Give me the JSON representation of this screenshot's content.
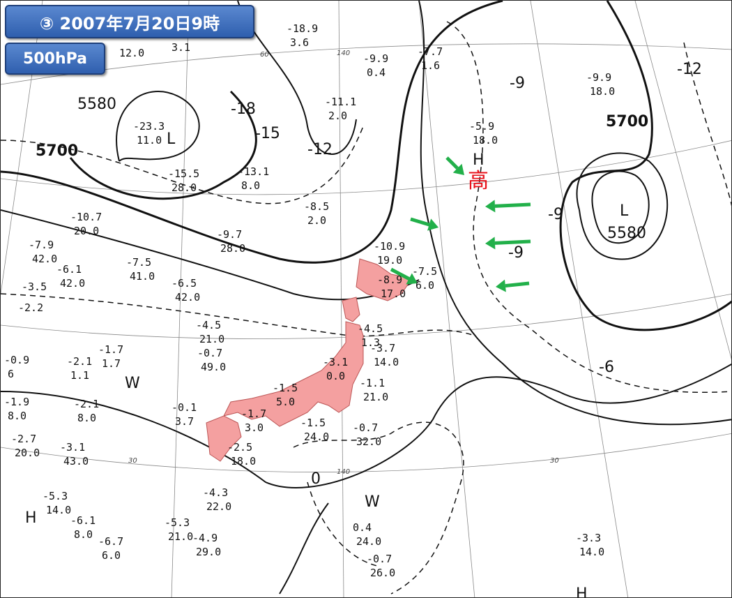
{
  "title": "③ 2007年7月20日9時",
  "level": "500hPa",
  "colors": {
    "japan_fill": "#f4a0a0",
    "arrow": "#22b04a",
    "high_kanji": "#e8101a",
    "badge": "#3a6bbd"
  },
  "high_kanji": "高",
  "markers": [
    "L",
    "L",
    "H",
    "H",
    "H",
    "W",
    "W"
  ],
  "contour_labels": [
    "5580",
    "-18",
    "-15",
    "-12",
    "-9",
    "-12",
    "-9",
    "-9",
    "5580",
    "-6",
    "0"
  ],
  "bold_contour_labels": [
    "5700",
    "5700"
  ],
  "grid_labels": [
    "60",
    "140",
    "140",
    "30",
    "30"
  ],
  "stations": [
    [
      "12.0",
      ""
    ],
    [
      "3.1",
      ""
    ],
    [
      "-18.9",
      "3.6"
    ],
    [
      "-9.9",
      "0.4"
    ],
    [
      "-7.7",
      "1.6"
    ],
    [
      "-11.1",
      "2.0"
    ],
    [
      "-23.3",
      "11.0"
    ],
    [
      "-15.5",
      "28.0"
    ],
    [
      "-13.1",
      "8.0"
    ],
    [
      "-8.5",
      "2.0"
    ],
    [
      "-5.9",
      "18.0"
    ],
    [
      "-9.9",
      "18.0"
    ],
    [
      "-10.7",
      "20.0"
    ],
    [
      "-9.7",
      "28.0"
    ],
    [
      "-7.9",
      "42.0"
    ],
    [
      "-6.1",
      "42.0"
    ],
    [
      "-3.5",
      ""
    ],
    [
      "-2.2",
      ""
    ],
    [
      "-7.5",
      "41.0"
    ],
    [
      "-6.5",
      "42.0"
    ],
    [
      "-10.9",
      "19.0"
    ],
    [
      "-8.9",
      "17.0"
    ],
    [
      "-7.5",
      "6.0"
    ],
    [
      "-4.5",
      "21.0"
    ],
    [
      "-4.5",
      "1.3"
    ],
    [
      "-3.7",
      "14.0"
    ],
    [
      "-1.7",
      "1.7"
    ],
    [
      "-0.7",
      "49.0"
    ],
    [
      "-0.9",
      "6"
    ],
    [
      "-2.1",
      "1.1"
    ],
    [
      "-3.1",
      "0.0"
    ],
    [
      "-1.1",
      "21.0"
    ],
    [
      "-1.5",
      "5.0"
    ],
    [
      "-1.9",
      "8.0"
    ],
    [
      "-2.1",
      "8.0"
    ],
    [
      "-0.1",
      "3.7"
    ],
    [
      "-1.7",
      "3.0"
    ],
    [
      "-1.5",
      "24.0"
    ],
    [
      "-0.7",
      "32.0"
    ],
    [
      "-2.7",
      "20.0"
    ],
    [
      "-3.1",
      "43.0"
    ],
    [
      "-2.5",
      "18.0"
    ],
    [
      "-4.3",
      "22.0"
    ],
    [
      "-5.3",
      "14.0"
    ],
    [
      "-6.1",
      "8.0"
    ],
    [
      "-5.3",
      "21.0"
    ],
    [
      "-4.9",
      "29.0"
    ],
    [
      "-6.7",
      "6.0"
    ],
    [
      "0.4",
      "24.0"
    ],
    [
      "-0.7",
      "26.0"
    ],
    [
      "-3.3",
      "14.0"
    ]
  ]
}
